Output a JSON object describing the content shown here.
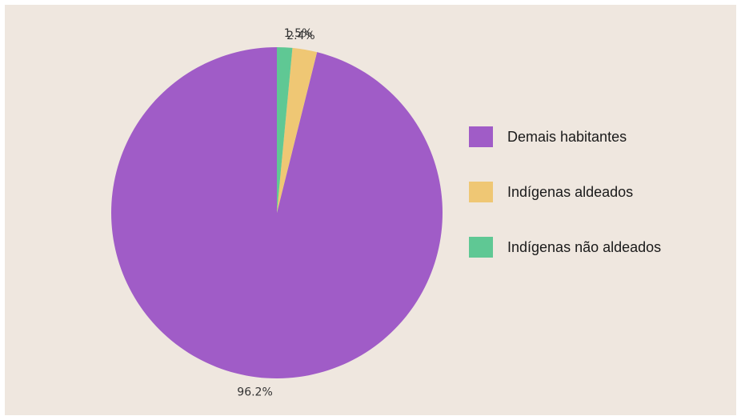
{
  "chart_data": {
    "type": "pie",
    "background": "#efe7df",
    "legend_position": "right",
    "slices": [
      {
        "label": "Demais habitantes",
        "value": 96.2,
        "value_label": "96.2%",
        "color": "#a05cc7",
        "icon": "legend-swatch-purple"
      },
      {
        "label": "Indígenas aldeados",
        "value": 2.4,
        "value_label": "2.4%",
        "color": "#efc774",
        "icon": "legend-swatch-yellow"
      },
      {
        "label": "Indígenas não aldeados",
        "value": 1.5,
        "value_label": "1.5%",
        "color": "#5fc894",
        "icon": "legend-swatch-green"
      }
    ]
  }
}
